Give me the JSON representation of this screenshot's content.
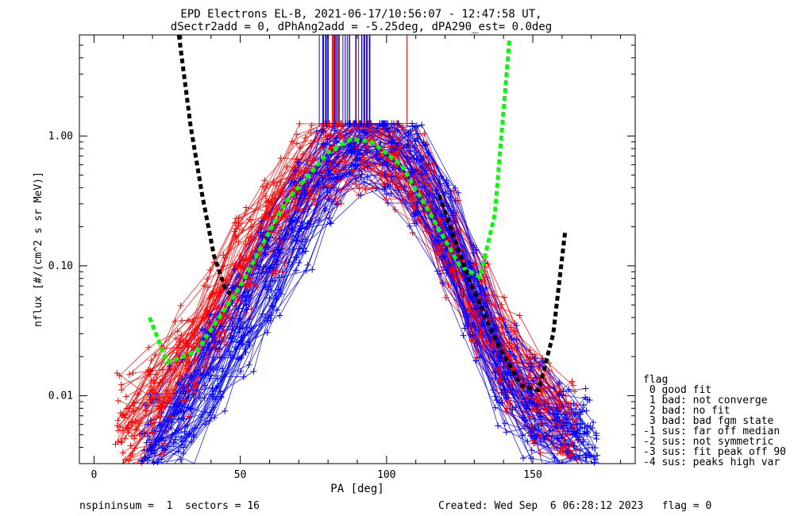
{
  "chart_data": {
    "type": "line",
    "title": "EPD Electrons EL-B, 2021-06-17/10:56:07 - 12:47:58 UT,",
    "subtitle": "dSectr2add = 0, dPhAng2add = -5.25deg, dPA290_est=   0.0deg",
    "xlabel": "PA [deg]",
    "ylabel": "nflux [#/(cm^2 s sr MeV)]",
    "xlim": [
      -5,
      185
    ],
    "ylim": [
      0.003,
      6.0
    ],
    "yscale": "log",
    "xticks": [
      "0",
      "50",
      "100",
      "150"
    ],
    "yticks": [
      "0.01",
      "0.10",
      "1.00"
    ],
    "series": [
      {
        "color": "#ff0000",
        "x": [
          12,
          22,
          32,
          42,
          52,
          62,
          72,
          82,
          92,
          102,
          112,
          122,
          132,
          142,
          152,
          162
        ],
        "y": [
          0.006,
          0.01,
          0.02,
          0.045,
          0.11,
          0.25,
          0.5,
          0.8,
          0.95,
          0.75,
          0.4,
          0.15,
          0.05,
          0.02,
          0.01,
          0.006
        ]
      },
      {
        "color": "#0000ff",
        "x": [
          20,
          30,
          40,
          50,
          60,
          70,
          80,
          90,
          100,
          110,
          120,
          130,
          140,
          150,
          160,
          168
        ],
        "y": [
          0.004,
          0.007,
          0.015,
          0.035,
          0.09,
          0.22,
          0.5,
          0.85,
          0.8,
          0.5,
          0.18,
          0.05,
          0.015,
          0.007,
          0.005,
          0.004
        ]
      }
    ],
    "fit_curves": [
      {
        "color": "#000000",
        "x": [
          29,
          33,
          37,
          41,
          45,
          48
        ],
        "y": [
          6.0,
          1.2,
          0.35,
          0.12,
          0.065,
          0.058
        ]
      },
      {
        "color": "#00ff00",
        "x": [
          19,
          25,
          35,
          50,
          65,
          80,
          88,
          95,
          105,
          115,
          125,
          132,
          137,
          142
        ],
        "y": [
          0.04,
          0.018,
          0.022,
          0.07,
          0.3,
          0.75,
          0.95,
          0.9,
          0.6,
          0.25,
          0.1,
          0.082,
          0.25,
          5.5
        ]
      },
      {
        "color": "#000000",
        "x": [
          118,
          128,
          138,
          146,
          152,
          157,
          161
        ],
        "y": [
          0.35,
          0.08,
          0.025,
          0.012,
          0.011,
          0.03,
          0.18
        ]
      }
    ]
  },
  "legend": {
    "title": "flag",
    "items": [
      " 0 good fit",
      " 1 bad: not converge",
      " 2 bad: no fit",
      " 3 bad: bad fgm state",
      "-1 sus: far off median",
      "-2 sus: not symmetric",
      "-3 sus: fit peak off 90",
      "-4 sus: peaks high var"
    ]
  },
  "footer": {
    "left": "nspininsum =  1  sectors = 16",
    "right": "Created: Wed Sep  6 06:28:12 2023   flag = 0"
  }
}
